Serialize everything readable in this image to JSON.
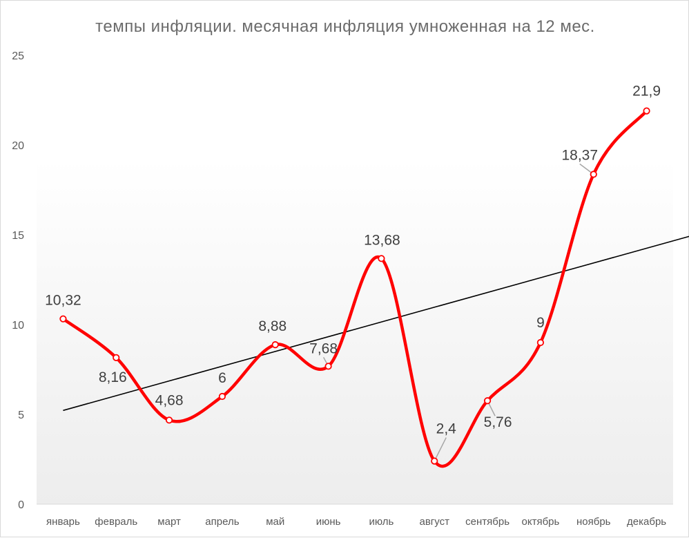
{
  "chart_data": {
    "type": "line",
    "title": "темпы инфляции. месячная инфляция умноженная на 12 мес.",
    "categories": [
      "январь",
      "февраль",
      "март",
      "апрель",
      "май",
      "июнь",
      "июль",
      "август",
      "сентябрь",
      "октябрь",
      "ноябрь",
      "декабрь"
    ],
    "values": [
      10.32,
      8.16,
      4.68,
      6,
      8.88,
      7.68,
      13.68,
      2.4,
      5.76,
      9,
      18.37,
      21.9
    ],
    "data_labels": [
      "10,32",
      "8,16",
      "4,68",
      "6",
      "8,88",
      "7,68",
      "13,68",
      "2,4",
      "5,76",
      "9",
      "18,37",
      "21,9"
    ],
    "ylim": [
      0,
      25
    ],
    "yticks": [
      0,
      5,
      10,
      15,
      20,
      25
    ],
    "ytick_labels": [
      "0",
      "5",
      "10",
      "15",
      "20",
      "25"
    ],
    "series_color": "#ff0000",
    "trendline": {
      "type": "linear",
      "color": "#000000"
    },
    "smoothed": true,
    "grid": false,
    "legend": "none",
    "xlabel": "",
    "ylabel": ""
  }
}
